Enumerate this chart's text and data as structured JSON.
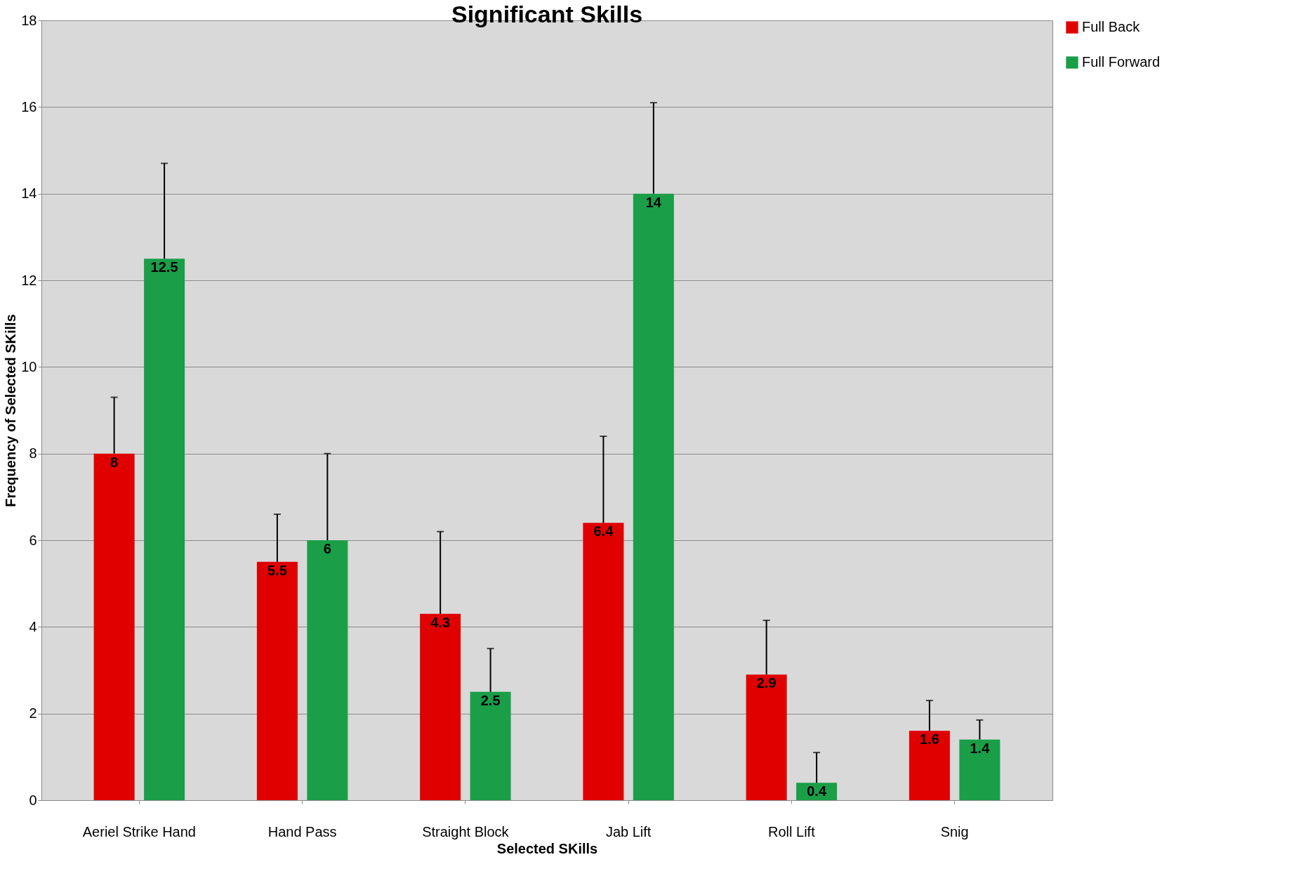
{
  "chart_data": {
    "type": "bar",
    "title": "Significant Skills",
    "xlabel": "Selected SKills",
    "ylabel": "Frequency of Selected SKills",
    "categories": [
      "Aeriel Strike Hand",
      "Hand Pass",
      "Straight Block",
      "Jab Lift",
      "Roll Lift",
      "Snig"
    ],
    "series": [
      {
        "name": "Full Back",
        "color": "#e00000",
        "values": [
          8,
          5.5,
          4.3,
          6.4,
          2.9,
          1.6
        ],
        "errors": [
          [
            8,
            9.3
          ],
          [
            5.5,
            6.6
          ],
          [
            4.3,
            6.2
          ],
          [
            6.4,
            8.4
          ],
          [
            2.9,
            4.15
          ],
          [
            1.6,
            2.3
          ]
        ]
      },
      {
        "name": "Full Forward",
        "color": "#1a9e48",
        "values": [
          12.5,
          6,
          2.5,
          14,
          0.4,
          1.4
        ],
        "errors": [
          [
            12.5,
            14.7
          ],
          [
            6,
            8
          ],
          [
            2.5,
            3.5
          ],
          [
            14,
            16.1
          ],
          [
            0.4,
            1.1
          ],
          [
            1.4,
            1.85
          ]
        ]
      }
    ],
    "ylim": [
      0,
      18
    ],
    "yticks": [
      0,
      2,
      4,
      6,
      8,
      10,
      12,
      14,
      16,
      18
    ],
    "grid": "y",
    "legend": "right",
    "data_labels": true
  }
}
